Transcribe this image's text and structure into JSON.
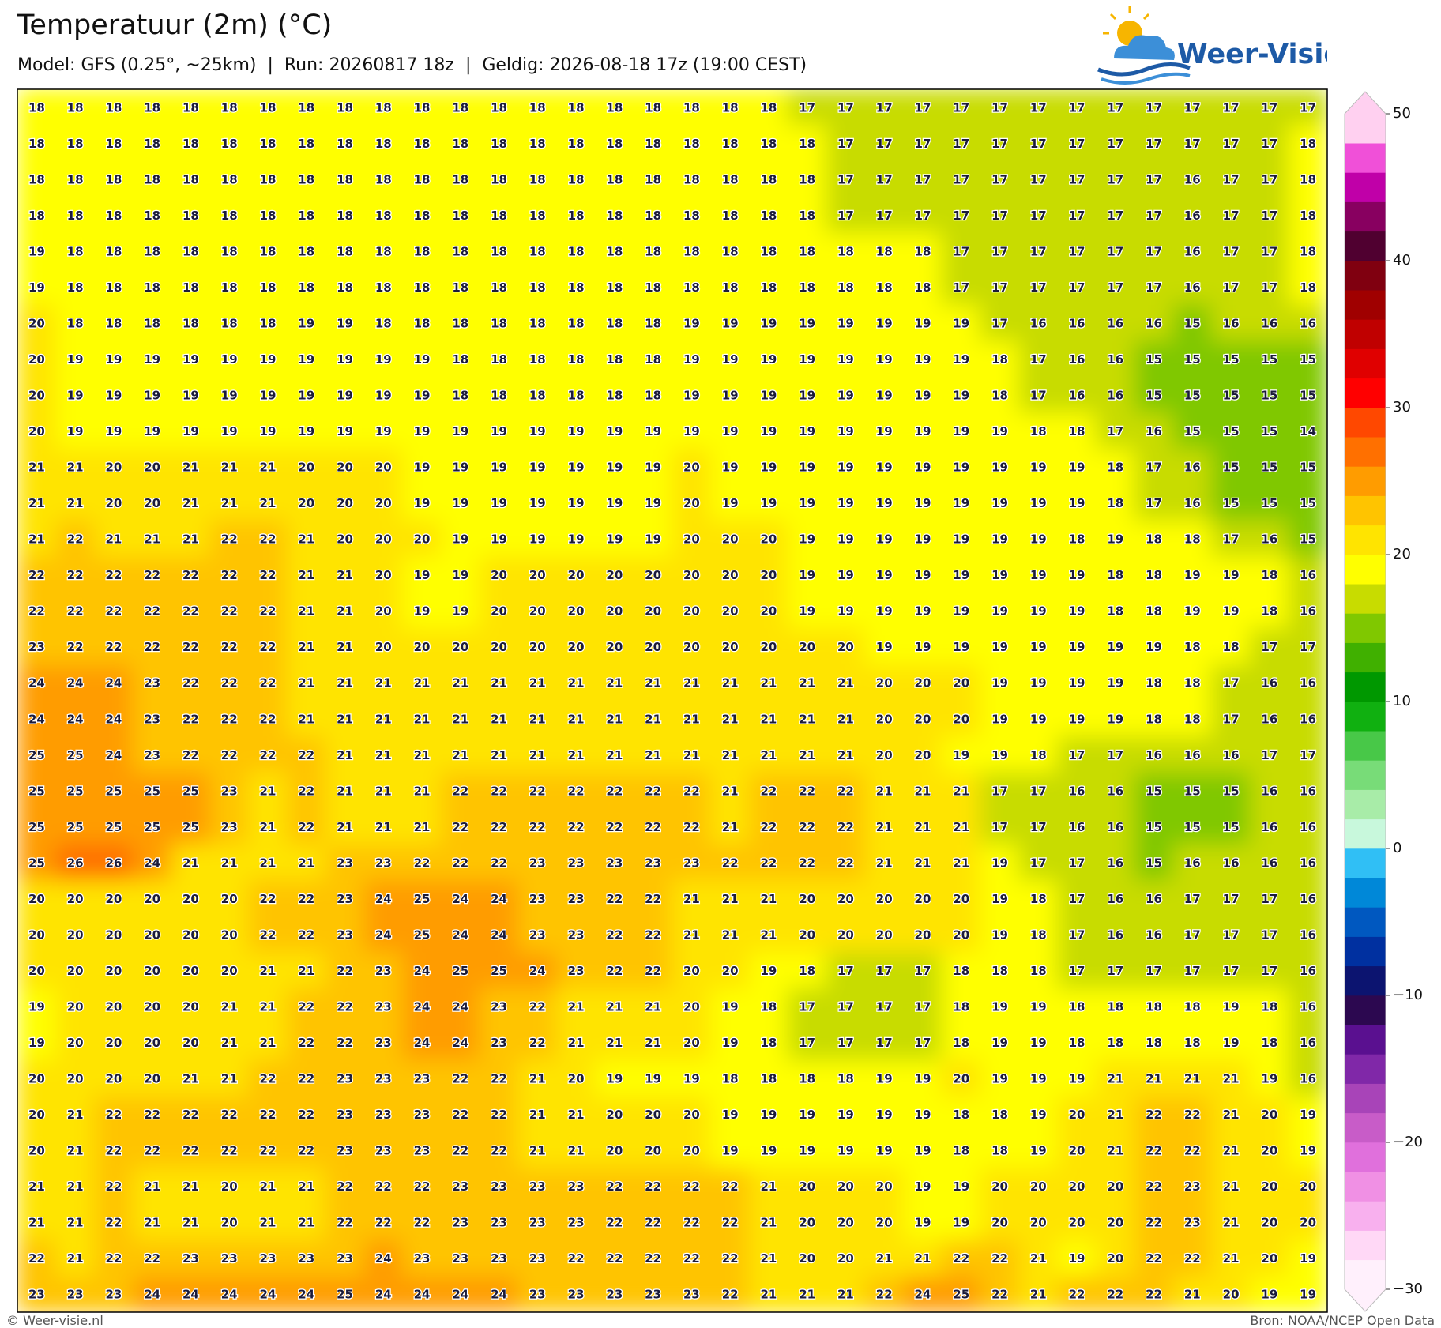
{
  "header": {
    "title": "Temperatuur (2m) (°C)",
    "subtitle": "Model: GFS (0.25°, ~25km)  |  Run: 20260817 18z  |  Geldig: 2026-08-18 17z (19:00 CEST)",
    "logo": "Weer-Visie"
  },
  "map": {
    "grid": [
      [
        18,
        18,
        18,
        18,
        18,
        18,
        18,
        18,
        18,
        18,
        18,
        18,
        18,
        18,
        18,
        18,
        18,
        18,
        18,
        18,
        17,
        17,
        17,
        17,
        17,
        17,
        17,
        17,
        17,
        17,
        17,
        17,
        17,
        17
      ],
      [
        18,
        18,
        18,
        18,
        18,
        18,
        18,
        18,
        18,
        18,
        18,
        18,
        18,
        18,
        18,
        18,
        18,
        18,
        18,
        18,
        18,
        17,
        17,
        17,
        17,
        17,
        17,
        17,
        17,
        17,
        17,
        17,
        17,
        18
      ],
      [
        18,
        18,
        18,
        18,
        18,
        18,
        18,
        18,
        18,
        18,
        18,
        18,
        18,
        18,
        18,
        18,
        18,
        18,
        18,
        18,
        18,
        17,
        17,
        17,
        17,
        17,
        17,
        17,
        17,
        17,
        16,
        17,
        17,
        18
      ],
      [
        18,
        18,
        18,
        18,
        18,
        18,
        18,
        18,
        18,
        18,
        18,
        18,
        18,
        18,
        18,
        18,
        18,
        18,
        18,
        18,
        18,
        17,
        17,
        17,
        17,
        17,
        17,
        17,
        17,
        17,
        16,
        17,
        17,
        18
      ],
      [
        19,
        18,
        18,
        18,
        18,
        18,
        18,
        18,
        18,
        18,
        18,
        18,
        18,
        18,
        18,
        18,
        18,
        18,
        18,
        18,
        18,
        18,
        18,
        18,
        17,
        17,
        17,
        17,
        17,
        17,
        16,
        17,
        17,
        18
      ],
      [
        19,
        18,
        18,
        18,
        18,
        18,
        18,
        18,
        18,
        18,
        18,
        18,
        18,
        18,
        18,
        18,
        18,
        18,
        18,
        18,
        18,
        18,
        18,
        18,
        17,
        17,
        17,
        17,
        17,
        17,
        16,
        17,
        17,
        18
      ],
      [
        20,
        18,
        18,
        18,
        18,
        18,
        18,
        19,
        19,
        18,
        18,
        18,
        18,
        18,
        18,
        18,
        18,
        19,
        19,
        19,
        19,
        19,
        19,
        19,
        19,
        17,
        16,
        16,
        16,
        16,
        15,
        16,
        16,
        16
      ],
      [
        20,
        19,
        19,
        19,
        19,
        19,
        19,
        19,
        19,
        19,
        19,
        18,
        18,
        18,
        18,
        18,
        18,
        19,
        19,
        19,
        19,
        19,
        19,
        19,
        19,
        18,
        17,
        16,
        16,
        15,
        15,
        15,
        15,
        15
      ],
      [
        20,
        19,
        19,
        19,
        19,
        19,
        19,
        19,
        19,
        19,
        19,
        18,
        18,
        18,
        18,
        18,
        18,
        19,
        19,
        19,
        19,
        19,
        19,
        19,
        19,
        18,
        17,
        16,
        16,
        15,
        15,
        15,
        15,
        15
      ],
      [
        20,
        19,
        19,
        19,
        19,
        19,
        19,
        19,
        19,
        19,
        19,
        19,
        19,
        19,
        19,
        19,
        19,
        19,
        19,
        19,
        19,
        19,
        19,
        19,
        19,
        19,
        18,
        18,
        17,
        16,
        15,
        15,
        15,
        14
      ],
      [
        21,
        21,
        20,
        20,
        21,
        21,
        21,
        20,
        20,
        20,
        19,
        19,
        19,
        19,
        19,
        19,
        19,
        20,
        19,
        19,
        19,
        19,
        19,
        19,
        19,
        19,
        19,
        19,
        18,
        17,
        16,
        15,
        15,
        15
      ],
      [
        21,
        21,
        20,
        20,
        21,
        21,
        21,
        20,
        20,
        20,
        19,
        19,
        19,
        19,
        19,
        19,
        19,
        20,
        19,
        19,
        19,
        19,
        19,
        19,
        19,
        19,
        19,
        19,
        18,
        17,
        16,
        15,
        15,
        15
      ],
      [
        21,
        22,
        21,
        21,
        21,
        22,
        22,
        21,
        20,
        20,
        20,
        19,
        19,
        19,
        19,
        19,
        19,
        20,
        20,
        20,
        19,
        19,
        19,
        19,
        19,
        19,
        19,
        18,
        19,
        18,
        18,
        17,
        16,
        15
      ],
      [
        22,
        22,
        22,
        22,
        22,
        22,
        22,
        21,
        21,
        20,
        19,
        19,
        20,
        20,
        20,
        20,
        20,
        20,
        20,
        20,
        19,
        19,
        19,
        19,
        19,
        19,
        19,
        19,
        18,
        18,
        19,
        19,
        18,
        16
      ],
      [
        22,
        22,
        22,
        22,
        22,
        22,
        22,
        21,
        21,
        20,
        19,
        19,
        20,
        20,
        20,
        20,
        20,
        20,
        20,
        20,
        19,
        19,
        19,
        19,
        19,
        19,
        19,
        19,
        18,
        18,
        19,
        19,
        18,
        16
      ],
      [
        23,
        22,
        22,
        22,
        22,
        22,
        22,
        21,
        21,
        20,
        20,
        20,
        20,
        20,
        20,
        20,
        20,
        20,
        20,
        20,
        20,
        20,
        19,
        19,
        19,
        19,
        19,
        19,
        19,
        19,
        18,
        18,
        17,
        17
      ],
      [
        24,
        24,
        24,
        23,
        22,
        22,
        22,
        21,
        21,
        21,
        21,
        21,
        21,
        21,
        21,
        21,
        21,
        21,
        21,
        21,
        21,
        21,
        20,
        20,
        20,
        19,
        19,
        19,
        19,
        18,
        18,
        17,
        16,
        16
      ],
      [
        24,
        24,
        24,
        23,
        22,
        22,
        22,
        21,
        21,
        21,
        21,
        21,
        21,
        21,
        21,
        21,
        21,
        21,
        21,
        21,
        21,
        21,
        20,
        20,
        20,
        19,
        19,
        19,
        19,
        18,
        18,
        17,
        16,
        16
      ],
      [
        25,
        25,
        24,
        23,
        22,
        22,
        22,
        22,
        21,
        21,
        21,
        21,
        21,
        21,
        21,
        21,
        21,
        21,
        21,
        21,
        21,
        21,
        20,
        20,
        19,
        19,
        18,
        17,
        17,
        16,
        16,
        16,
        17,
        17
      ],
      [
        25,
        25,
        25,
        25,
        25,
        23,
        21,
        22,
        21,
        21,
        21,
        22,
        22,
        22,
        22,
        22,
        22,
        22,
        21,
        22,
        22,
        22,
        21,
        21,
        21,
        17,
        17,
        16,
        16,
        15,
        15,
        15,
        16,
        16
      ],
      [
        25,
        25,
        25,
        25,
        25,
        23,
        21,
        22,
        21,
        21,
        21,
        22,
        22,
        22,
        22,
        22,
        22,
        22,
        21,
        22,
        22,
        22,
        21,
        21,
        21,
        17,
        17,
        16,
        16,
        15,
        15,
        15,
        16,
        16
      ],
      [
        25,
        26,
        26,
        24,
        21,
        21,
        21,
        21,
        23,
        23,
        22,
        22,
        22,
        23,
        23,
        23,
        23,
        23,
        22,
        22,
        22,
        22,
        21,
        21,
        21,
        19,
        17,
        17,
        16,
        15,
        16,
        16,
        16,
        16
      ],
      [
        20,
        20,
        20,
        20,
        20,
        20,
        22,
        22,
        23,
        24,
        25,
        24,
        24,
        23,
        23,
        22,
        22,
        21,
        21,
        21,
        20,
        20,
        20,
        20,
        20,
        19,
        18,
        17,
        16,
        16,
        17,
        17,
        17,
        16
      ],
      [
        20,
        20,
        20,
        20,
        20,
        20,
        22,
        22,
        23,
        24,
        25,
        24,
        24,
        23,
        23,
        22,
        22,
        21,
        21,
        21,
        20,
        20,
        20,
        20,
        20,
        19,
        18,
        17,
        16,
        16,
        17,
        17,
        17,
        16
      ],
      [
        20,
        20,
        20,
        20,
        20,
        20,
        21,
        21,
        22,
        23,
        24,
        25,
        25,
        24,
        23,
        22,
        22,
        20,
        20,
        19,
        18,
        17,
        17,
        17,
        18,
        18,
        18,
        17,
        17,
        17,
        17,
        17,
        17,
        16
      ],
      [
        19,
        20,
        20,
        20,
        20,
        21,
        21,
        22,
        22,
        23,
        24,
        24,
        23,
        22,
        21,
        21,
        21,
        20,
        19,
        18,
        17,
        17,
        17,
        17,
        18,
        19,
        19,
        18,
        18,
        18,
        18,
        19,
        18,
        16
      ],
      [
        19,
        20,
        20,
        20,
        20,
        21,
        21,
        22,
        22,
        23,
        24,
        24,
        23,
        22,
        21,
        21,
        21,
        20,
        19,
        18,
        17,
        17,
        17,
        17,
        18,
        19,
        19,
        18,
        18,
        18,
        18,
        19,
        18,
        16
      ],
      [
        20,
        20,
        20,
        20,
        21,
        21,
        22,
        22,
        23,
        23,
        23,
        22,
        22,
        21,
        20,
        19,
        19,
        19,
        18,
        18,
        18,
        18,
        19,
        19,
        20,
        19,
        19,
        19,
        21,
        21,
        21,
        21,
        19,
        16
      ],
      [
        20,
        21,
        22,
        22,
        22,
        22,
        22,
        22,
        23,
        23,
        23,
        22,
        22,
        21,
        21,
        20,
        20,
        20,
        19,
        19,
        19,
        19,
        19,
        19,
        18,
        18,
        19,
        20,
        21,
        22,
        22,
        21,
        20,
        19
      ],
      [
        20,
        21,
        22,
        22,
        22,
        22,
        22,
        22,
        23,
        23,
        23,
        22,
        22,
        21,
        21,
        20,
        20,
        20,
        19,
        19,
        19,
        19,
        19,
        19,
        18,
        18,
        19,
        20,
        21,
        22,
        22,
        21,
        20,
        19
      ],
      [
        21,
        21,
        22,
        21,
        21,
        20,
        21,
        21,
        22,
        22,
        22,
        23,
        23,
        23,
        23,
        22,
        22,
        22,
        22,
        21,
        20,
        20,
        20,
        19,
        19,
        20,
        20,
        20,
        20,
        22,
        23,
        21,
        20,
        20
      ],
      [
        21,
        21,
        22,
        21,
        21,
        20,
        21,
        21,
        22,
        22,
        22,
        23,
        23,
        23,
        23,
        22,
        22,
        22,
        22,
        21,
        20,
        20,
        20,
        19,
        19,
        20,
        20,
        20,
        20,
        22,
        23,
        21,
        20,
        20
      ],
      [
        22,
        21,
        22,
        22,
        23,
        23,
        23,
        23,
        23,
        24,
        23,
        23,
        23,
        23,
        22,
        22,
        22,
        22,
        22,
        21,
        20,
        20,
        21,
        21,
        22,
        22,
        21,
        19,
        20,
        22,
        22,
        21,
        20,
        19
      ],
      [
        23,
        23,
        23,
        24,
        24,
        24,
        24,
        24,
        25,
        24,
        24,
        24,
        24,
        23,
        23,
        23,
        23,
        23,
        22,
        21,
        21,
        21,
        22,
        24,
        25,
        22,
        21,
        22,
        22,
        22,
        21,
        20,
        19,
        19
      ]
    ]
  },
  "colorbar": {
    "lim": [
      -30,
      50
    ],
    "ticks": [
      {
        "value": -30,
        "label": "−30"
      },
      {
        "value": -20,
        "label": "−20"
      },
      {
        "value": -10,
        "label": "−10"
      },
      0,
      10,
      20,
      30,
      40,
      50
    ],
    "colors": [
      "#fff0fc",
      "#ffd8f6",
      "#f8b0ee",
      "#f090e4",
      "#e070dc",
      "#c85cc8",
      "#a844b8",
      "#8028a8",
      "#5a1090",
      "#2c0850",
      "#0c1470",
      "#0030a0",
      "#0058c0",
      "#0088d8",
      "#30bff5",
      "#c8f8dc",
      "#a8eca8",
      "#78dc78",
      "#48c848",
      "#10b010",
      "#009800",
      "#40b000",
      "#80c800",
      "#c8dc00",
      "#ffff00",
      "#ffe400",
      "#ffc400",
      "#ff9c00",
      "#ff7000",
      "#ff4800",
      "#ff0000",
      "#e00000",
      "#c00000",
      "#a00000",
      "#800010",
      "#500030",
      "#880060",
      "#c000a8",
      "#f050d8",
      "#ffd0f0"
    ]
  },
  "footer": {
    "copyright": "© Weer-visie.nl",
    "source": "Bron: NOAA/NCEP Open Data"
  }
}
